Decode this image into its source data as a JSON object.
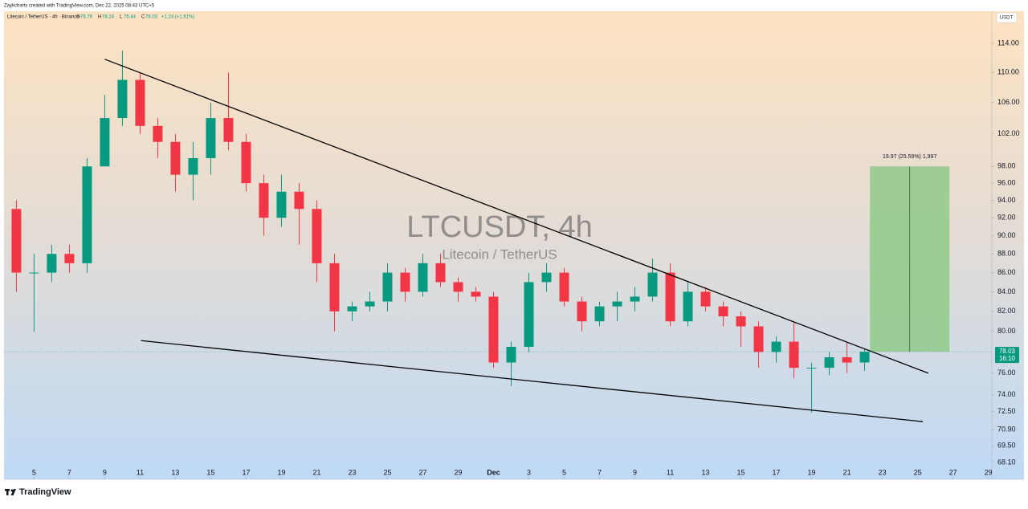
{
  "header": {
    "credit": "Zaykcharts created with TradingView.com, Dec 22, 2025 08:43 UTC+5"
  },
  "chart_data": {
    "type": "candlestick",
    "title": "Litecoin / TetherUS · 4h · Binance",
    "ohlc_legend": [
      {
        "key": "O",
        "value": 76.79
      },
      {
        "key": "H",
        "value": 78.24
      },
      {
        "key": "L",
        "value": 76.44
      },
      {
        "key": "C",
        "value": 78.03
      }
    ],
    "change": "+1.24 (+1.61%)",
    "watermark": "LTCUSDT, 4h",
    "watermark_subtitle": "Litecoin / TetherUS",
    "currency": "USDT",
    "up_color": "#089981",
    "down_color": "#f23645",
    "log_scale": true,
    "x": [
      4,
      5,
      6,
      7,
      8,
      9,
      10,
      11,
      12,
      13,
      14,
      15,
      16,
      17,
      18,
      19,
      20,
      21,
      22,
      23,
      24,
      25,
      26,
      27,
      28,
      29,
      30,
      31,
      32,
      33,
      34,
      35,
      36,
      37,
      38,
      39,
      40,
      41,
      42,
      43,
      44,
      45,
      46,
      47,
      48,
      49,
      50,
      51,
      52
    ],
    "open": [
      93,
      86,
      86,
      88,
      87,
      98,
      104,
      109,
      103,
      101,
      97,
      99,
      104,
      101,
      96,
      92,
      95,
      93,
      87,
      82,
      82.5,
      83,
      86,
      84,
      87,
      85,
      84,
      83.5,
      77,
      78.5,
      85,
      86,
      83,
      81,
      82.5,
      83,
      83.5,
      86,
      81,
      84,
      82.5,
      81.5,
      80.5,
      78,
      79,
      76.5,
      76.5,
      77.5,
      77
    ],
    "high": [
      94,
      88,
      89,
      89,
      99,
      107,
      113,
      110,
      104,
      102,
      101,
      106,
      110,
      102,
      97,
      97,
      96,
      94,
      88,
      83,
      84,
      87,
      86.5,
      88,
      88,
      85.5,
      84.5,
      84,
      79,
      86,
      87,
      86.5,
      83.5,
      83,
      84,
      84.5,
      87.5,
      87,
      85,
      84.5,
      83,
      82,
      81,
      79.5,
      81,
      77,
      78,
      79,
      78.3
    ],
    "low": [
      84,
      80,
      85,
      86,
      86,
      98,
      103,
      102,
      99,
      95,
      94,
      97,
      100,
      95,
      90,
      91,
      89,
      85,
      80,
      81,
      82,
      82,
      83,
      83.5,
      84.5,
      83,
      83,
      76.5,
      74.8,
      78,
      84,
      82.5,
      80,
      80.5,
      81,
      82,
      83,
      80.5,
      80.5,
      82,
      80.5,
      78.5,
      76.5,
      77,
      75.5,
      72.4,
      75.8,
      76,
      76.2
    ],
    "close": [
      86,
      86,
      88,
      87,
      98,
      104,
      109,
      103,
      101,
      97,
      99,
      104,
      101,
      96,
      92,
      95,
      93,
      87,
      82,
      82.5,
      83,
      86,
      84,
      87,
      85,
      84,
      83.5,
      77,
      78.5,
      85,
      86,
      83,
      81,
      82.5,
      83,
      83.5,
      86,
      81,
      84,
      82.5,
      81.5,
      80.5,
      78,
      79,
      76.5,
      76.5,
      77.5,
      77,
      78.03
    ],
    "xlim": [
      3.3,
      59.2
    ],
    "xticks": [
      5,
      7,
      9,
      11,
      13,
      15,
      17,
      19,
      21,
      23,
      25,
      27,
      29,
      {
        "value": 31,
        "label": "Dec"
      },
      {
        "value": 33,
        "label": "3"
      },
      {
        "value": 35,
        "label": "5"
      },
      {
        "value": 37,
        "label": "7"
      },
      {
        "value": 39,
        "label": "9"
      },
      {
        "value": 41,
        "label": "11"
      },
      {
        "value": 43,
        "label": "13"
      },
      {
        "value": 45,
        "label": "15"
      },
      {
        "value": 47,
        "label": "17"
      },
      {
        "value": 49,
        "label": "19"
      },
      {
        "value": 51,
        "label": "21"
      },
      {
        "value": 53,
        "label": "23"
      },
      {
        "value": 55,
        "label": "25"
      },
      {
        "value": 57,
        "label": "27"
      },
      {
        "value": 59,
        "label": "29"
      }
    ],
    "ylim": [
      66.7,
      118.6
    ],
    "yticks": [
      {
        "value": 114,
        "label": "114.00"
      },
      {
        "value": 110,
        "label": "110.00"
      },
      {
        "value": 106,
        "label": "106.00"
      },
      {
        "value": 102,
        "label": "102.00"
      },
      {
        "value": 98,
        "label": "98.00"
      },
      {
        "value": 96,
        "label": "96.00"
      },
      {
        "value": 94,
        "label": "94.00"
      },
      {
        "value": 92,
        "label": "92.00"
      },
      {
        "value": 90,
        "label": "90.00"
      },
      {
        "value": 88,
        "label": "88.00"
      },
      {
        "value": 86,
        "label": "86.00"
      },
      {
        "value": 84,
        "label": "84.00"
      },
      {
        "value": 82,
        "label": "82.00"
      },
      {
        "value": 80,
        "label": "80.00"
      },
      {
        "value": 76,
        "label": "76.00"
      },
      {
        "value": 74,
        "label": "74.00"
      },
      {
        "value": 72.5,
        "label": "72.50"
      },
      {
        "value": 70.9,
        "label": "70.90"
      },
      {
        "value": 69.5,
        "label": "69.50"
      },
      {
        "value": 68.1,
        "label": "68.10"
      }
    ],
    "trendlines": [
      {
        "x": [
          9,
          55.6
        ],
        "y": [
          111.8,
          76.0
        ]
      },
      {
        "x": [
          11.05,
          55.3
        ],
        "y": [
          79.1,
          71.6
        ]
      }
    ],
    "measure": {
      "label": "19.97 (25.59%) 1,997",
      "x": [
        52.3,
        56.8
      ],
      "y": [
        78.03,
        98
      ],
      "color": "#8fca87"
    },
    "last_price": 78.03,
    "countdown": "16:10"
  },
  "footer": {
    "brand": "TradingView"
  }
}
